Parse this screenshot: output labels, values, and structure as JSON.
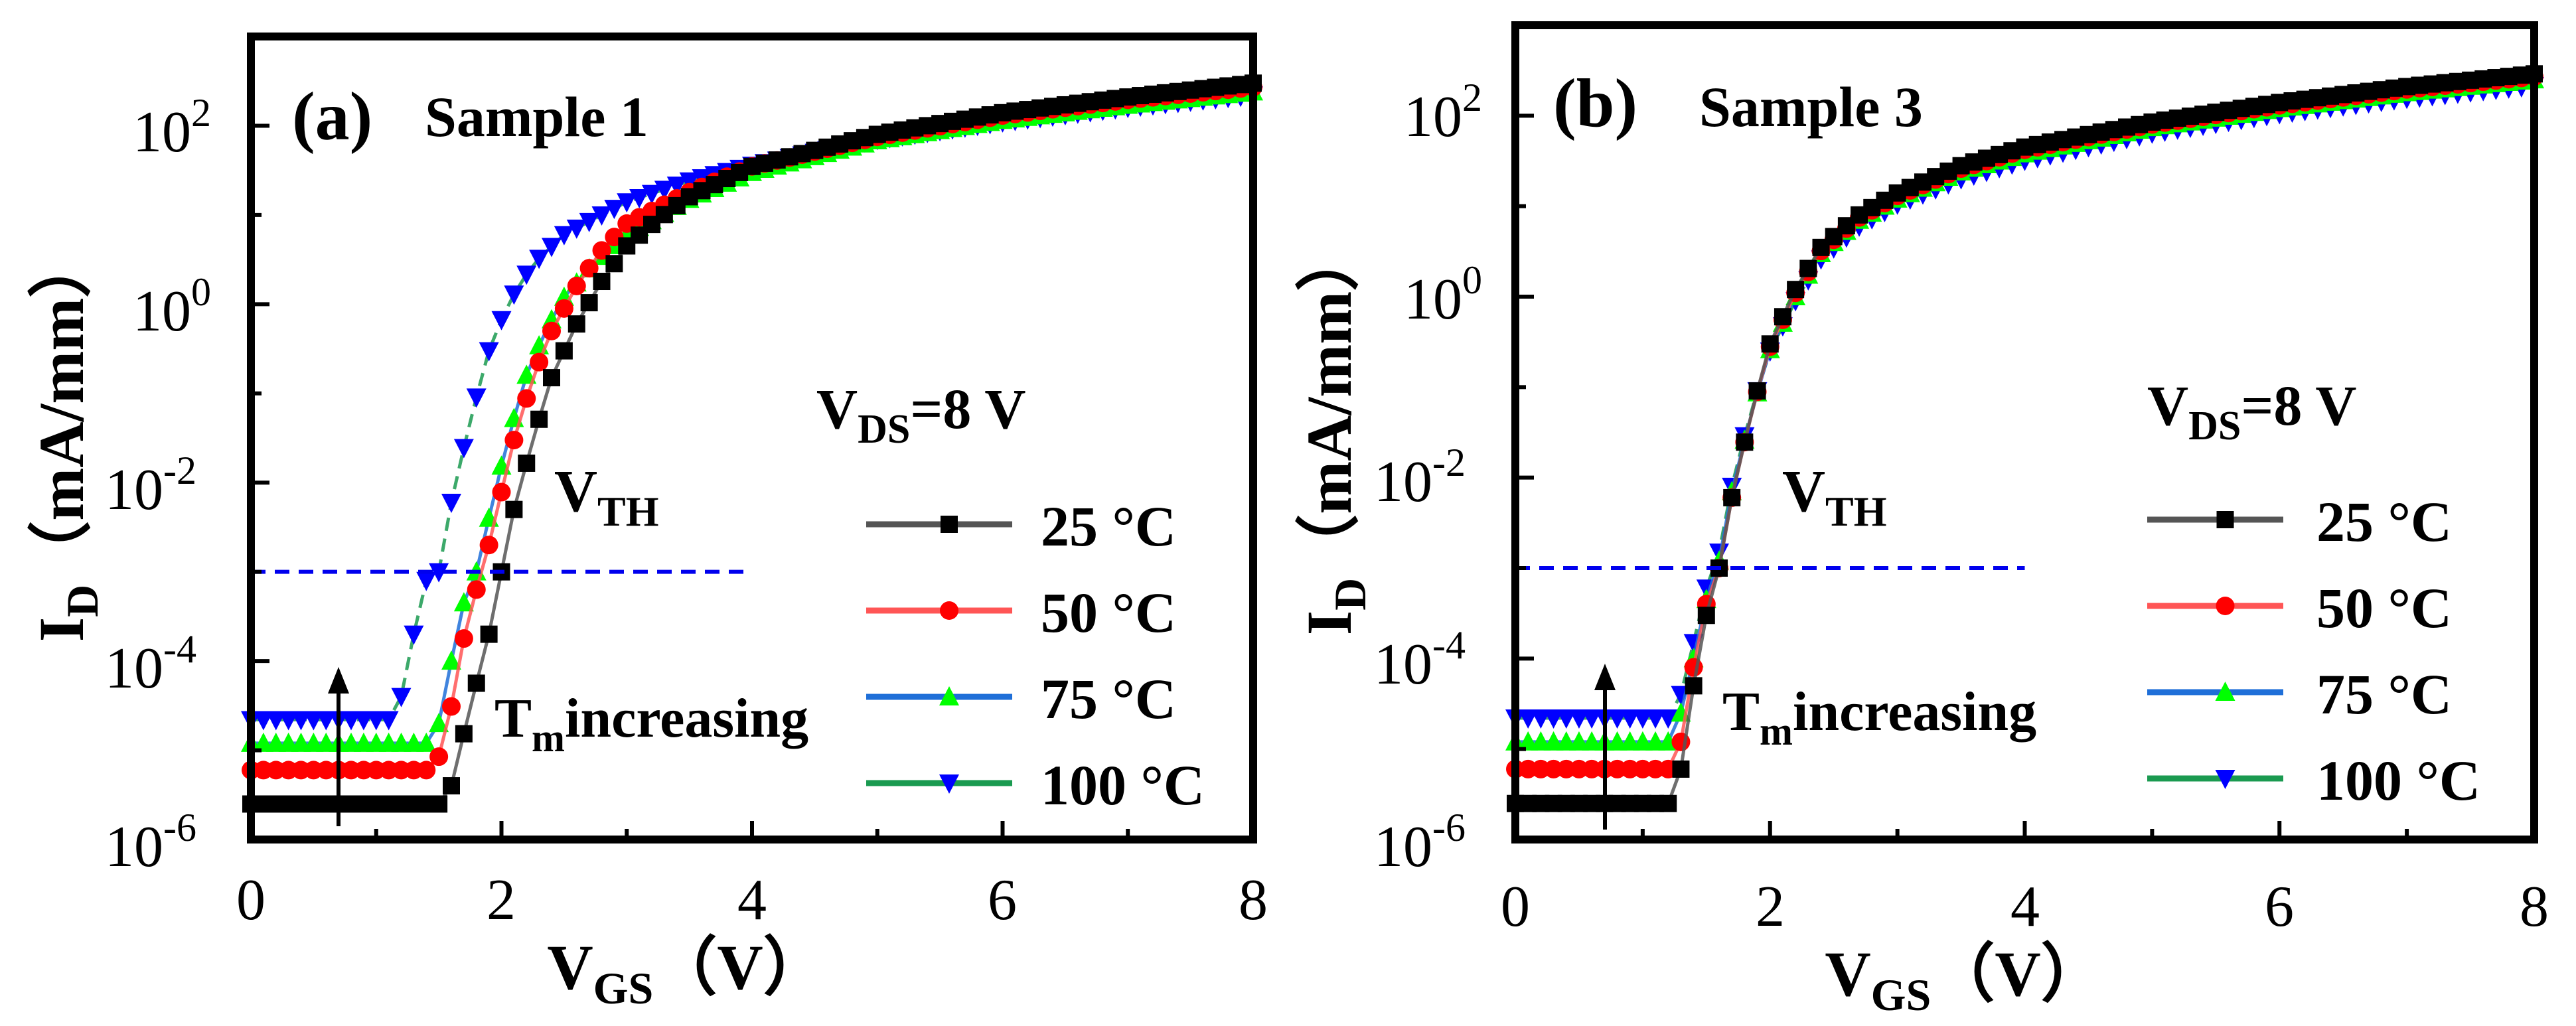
{
  "figure": {
    "colors": {
      "25 °C": "#000000",
      "50 °C": "#ff0000",
      "75 °C": "#00ff00",
      "100 °C": "#0000ff",
      "legend_line_25": "#555555",
      "legend_line_50": "#ff5555",
      "legend_line_75": "#1f6fd8",
      "legend_line_100": "#1a9a50",
      "dashed_line": "#0000ee"
    }
  },
  "chart_data": [
    {
      "type": "line",
      "panel_label": "(a)",
      "sample": "Sample 1",
      "ylabel": {
        "main": "I",
        "sub": "D",
        "unit": "（mA/mm）"
      },
      "xlabel": {
        "main": "V",
        "sub": "GS",
        "unit": "（V）"
      },
      "x_ticks": [
        "0",
        "2",
        "4",
        "6",
        "8"
      ],
      "y_ticks": [
        {
          "base": "10",
          "exp": "-6"
        },
        {
          "base": "10",
          "exp": "-4"
        },
        {
          "base": "10",
          "exp": "-2"
        },
        {
          "base": "10",
          "exp": "0"
        },
        {
          "base": "10",
          "exp": "2"
        }
      ],
      "xlim": [
        0,
        8
      ],
      "ylim_log10": [
        -6,
        3
      ],
      "y_scale": "log",
      "legend": {
        "title_main": "V",
        "title_sub": "DS",
        "title_rest": "=8 V",
        "entries": [
          "25 °C",
          "50 °C",
          "75 °C",
          "100 °C"
        ]
      },
      "annotations": {
        "vth": {
          "main": "V",
          "sub": "TH"
        },
        "tm": {
          "main": "T",
          "sub": "m",
          "rest": "increasing"
        },
        "reference_line_y": 0.001,
        "reference_line_x": [
          0,
          4
        ]
      },
      "series": [
        {
          "name": "25 °C",
          "marker": "square",
          "off_current": 2.5e-06,
          "v_th": 2.05,
          "slope_pts": [
            [
              1.5,
              2.5e-06
            ],
            [
              1.6,
              4e-06
            ],
            [
              1.75,
              3e-05
            ],
            [
              1.9,
              0.0002
            ],
            [
              2.0,
              0.001
            ],
            [
              2.1,
              0.005
            ],
            [
              2.25,
              0.03
            ],
            [
              2.4,
              0.15
            ],
            [
              2.6,
              0.6
            ],
            [
              2.8,
              1.8
            ],
            [
              3.0,
              4.5
            ],
            [
              3.25,
              9
            ],
            [
              3.5,
              16
            ],
            [
              4.0,
              35
            ],
            [
              5.0,
              80
            ],
            [
              6.0,
              140
            ],
            [
              7.0,
              210
            ],
            [
              8.0,
              300
            ]
          ]
        },
        {
          "name": "50 °C",
          "marker": "circle",
          "off_current": 6e-06,
          "v_th": 1.85,
          "slope_pts": [
            [
              1.45,
              6e-06
            ],
            [
              1.55,
              1.2e-05
            ],
            [
              1.65,
              8e-05
            ],
            [
              1.75,
              0.0004
            ],
            [
              1.85,
              0.001
            ],
            [
              1.95,
              0.004
            ],
            [
              2.1,
              0.03
            ],
            [
              2.25,
              0.15
            ],
            [
              2.4,
              0.5
            ],
            [
              2.6,
              1.6
            ],
            [
              2.8,
              4
            ],
            [
              3.0,
              8
            ],
            [
              3.5,
              18
            ],
            [
              4.0,
              35
            ],
            [
              5.0,
              75
            ],
            [
              6.0,
              130
            ],
            [
              7.0,
              195
            ],
            [
              8.0,
              270
            ]
          ]
        },
        {
          "name": "75 °C",
          "marker": "triangle-up",
          "off_current": 1.2e-05,
          "v_th": 1.8,
          "slope_pts": [
            [
              1.4,
              1.2e-05
            ],
            [
              1.5,
              2e-05
            ],
            [
              1.6,
              0.0001
            ],
            [
              1.7,
              0.00045
            ],
            [
              1.8,
              0.001
            ],
            [
              1.9,
              0.004
            ],
            [
              2.05,
              0.03
            ],
            [
              2.2,
              0.16
            ],
            [
              2.35,
              0.5
            ],
            [
              2.5,
              1.2
            ],
            [
              2.75,
              3
            ],
            [
              3.0,
              6
            ],
            [
              3.5,
              15
            ],
            [
              4.0,
              30
            ],
            [
              5.0,
              68
            ],
            [
              6.0,
              115
            ],
            [
              7.0,
              170
            ],
            [
              8.0,
              240
            ]
          ]
        },
        {
          "name": "100 °C",
          "marker": "triangle-down",
          "off_current": 2.2e-05,
          "v_th": 1.5,
          "slope_pts": [
            [
              1.1,
              2.2e-05
            ],
            [
              1.2,
              4e-05
            ],
            [
              1.3,
              0.0002
            ],
            [
              1.4,
              0.0008
            ],
            [
              1.5,
              0.001
            ],
            [
              1.6,
              0.006
            ],
            [
              1.75,
              0.05
            ],
            [
              1.9,
              0.3
            ],
            [
              2.05,
              1
            ],
            [
              2.25,
              2.8
            ],
            [
              2.5,
              6
            ],
            [
              3.0,
              14
            ],
            [
              3.5,
              24
            ],
            [
              4.0,
              36
            ],
            [
              5.0,
              70
            ],
            [
              6.0,
              110
            ],
            [
              7.0,
              160
            ],
            [
              8.0,
              220
            ]
          ]
        }
      ]
    },
    {
      "type": "line",
      "panel_label": "(b)",
      "sample": "Sample 3",
      "ylabel": {
        "main": "I",
        "sub": "D",
        "unit": "（mA/mm）"
      },
      "xlabel": {
        "main": "V",
        "sub": "GS",
        "unit": "（V）"
      },
      "x_ticks": [
        "0",
        "2",
        "4",
        "6",
        "8"
      ],
      "y_ticks": [
        {
          "base": "10",
          "exp": "-6"
        },
        {
          "base": "10",
          "exp": "-4"
        },
        {
          "base": "10",
          "exp": "-2"
        },
        {
          "base": "10",
          "exp": "0"
        },
        {
          "base": "10",
          "exp": "2"
        }
      ],
      "xlim": [
        0,
        8
      ],
      "ylim_log10": [
        -6,
        3
      ],
      "y_scale": "log",
      "legend": {
        "title_main": "V",
        "title_sub": "DS",
        "title_rest": "=8 V",
        "entries": [
          "25 °C",
          "50 °C",
          "75 °C",
          "100 °C"
        ]
      },
      "annotations": {
        "vth": {
          "main": "V",
          "sub": "TH"
        },
        "tm": {
          "main": "T",
          "sub": "m",
          "rest": "increasing"
        },
        "reference_line_y": 0.001,
        "reference_line_x": [
          0,
          4
        ]
      },
      "series": [
        {
          "name": "25 °C",
          "marker": "square",
          "off_current": 2.5e-06,
          "v_th": 1.6,
          "slope_pts": [
            [
              1.2,
              2.5e-06
            ],
            [
              1.3,
              6e-06
            ],
            [
              1.4,
              5e-05
            ],
            [
              1.5,
              0.0003
            ],
            [
              1.6,
              0.001
            ],
            [
              1.7,
              0.006
            ],
            [
              1.85,
              0.05
            ],
            [
              2.0,
              0.3
            ],
            [
              2.2,
              1.2
            ],
            [
              2.4,
              3.5
            ],
            [
              2.7,
              8
            ],
            [
              3.0,
              14
            ],
            [
              3.5,
              28
            ],
            [
              4.0,
              45
            ],
            [
              5.0,
              85
            ],
            [
              6.0,
              140
            ],
            [
              7.0,
              210
            ],
            [
              8.0,
              290
            ]
          ]
        },
        {
          "name": "50 °C",
          "marker": "circle",
          "off_current": 6e-06,
          "v_th": 1.6,
          "slope_pts": [
            [
              1.2,
              6e-06
            ],
            [
              1.3,
              1.2e-05
            ],
            [
              1.4,
              8e-05
            ],
            [
              1.5,
              0.0004
            ],
            [
              1.6,
              0.001
            ],
            [
              1.7,
              0.006
            ],
            [
              1.85,
              0.05
            ],
            [
              2.0,
              0.28
            ],
            [
              2.2,
              1.1
            ],
            [
              2.4,
              3.2
            ],
            [
              2.7,
              7.5
            ],
            [
              3.0,
              13
            ],
            [
              3.5,
              26
            ],
            [
              4.0,
              42
            ],
            [
              5.0,
              80
            ],
            [
              6.0,
              130
            ],
            [
              7.0,
              195
            ],
            [
              8.0,
              270
            ]
          ]
        },
        {
          "name": "75 °C",
          "marker": "triangle-up",
          "off_current": 1.2e-05,
          "v_th": 1.58,
          "slope_pts": [
            [
              1.2,
              1.2e-05
            ],
            [
              1.3,
              2.5e-05
            ],
            [
              1.4,
              0.0001
            ],
            [
              1.5,
              0.00045
            ],
            [
              1.6,
              0.0012
            ],
            [
              1.7,
              0.007
            ],
            [
              1.85,
              0.05
            ],
            [
              2.0,
              0.26
            ],
            [
              2.2,
              1
            ],
            [
              2.4,
              3
            ],
            [
              2.7,
              7
            ],
            [
              3.0,
              12
            ],
            [
              3.5,
              24
            ],
            [
              4.0,
              38
            ],
            [
              5.0,
              74
            ],
            [
              6.0,
              120
            ],
            [
              7.0,
              180
            ],
            [
              8.0,
              250
            ]
          ]
        },
        {
          "name": "100 °C",
          "marker": "triangle-down",
          "off_current": 2.2e-05,
          "v_th": 1.55,
          "slope_pts": [
            [
              1.2,
              2.2e-05
            ],
            [
              1.3,
              4e-05
            ],
            [
              1.4,
              0.00015
            ],
            [
              1.5,
              0.0006
            ],
            [
              1.6,
              0.0015
            ],
            [
              1.7,
              0.008
            ],
            [
              1.85,
              0.055
            ],
            [
              2.0,
              0.25
            ],
            [
              2.2,
              0.9
            ],
            [
              2.4,
              2.6
            ],
            [
              2.7,
              6
            ],
            [
              3.0,
              10.5
            ],
            [
              3.5,
              20
            ],
            [
              4.0,
              32
            ],
            [
              5.0,
              64
            ],
            [
              6.0,
              105
            ],
            [
              7.0,
              155
            ],
            [
              8.0,
              215
            ]
          ]
        }
      ]
    }
  ]
}
